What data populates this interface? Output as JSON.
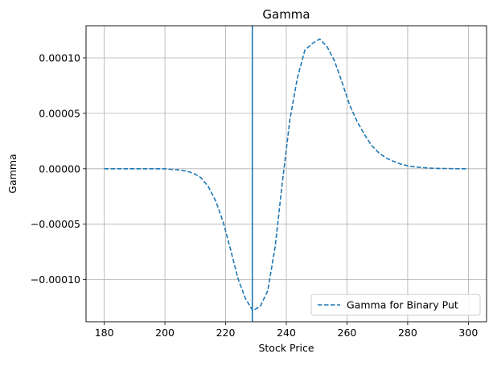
{
  "chart_data": {
    "type": "line",
    "title": "Gamma",
    "xlabel": "Stock Price",
    "ylabel": "Gamma",
    "xlim": [
      174,
      306
    ],
    "ylim": [
      -0.000138,
      0.000129
    ],
    "x_ticks": [
      180,
      200,
      220,
      240,
      260,
      280,
      300
    ],
    "x_tick_labels": [
      "180",
      "200",
      "220",
      "240",
      "260",
      "280",
      "300"
    ],
    "y_ticks": [
      -0.0001,
      -5e-05,
      0.0,
      5e-05,
      0.0001
    ],
    "y_tick_labels": [
      "−0.00010",
      "−0.00005",
      "0.00000",
      "0.00005",
      "0.00010"
    ],
    "grid": true,
    "legend_position": "bottom-right",
    "vertical_line": {
      "x": 228.8,
      "color": "#1f77b4"
    },
    "series": [
      {
        "name": "Gamma for Binary Put",
        "style": "dashed",
        "color": "#1f77b4",
        "x": [
          180,
          182.45,
          184.9,
          187.35,
          189.8,
          192.24,
          194.69,
          197.14,
          199.59,
          202.04,
          204.49,
          206.94,
          209.39,
          211.84,
          214.29,
          216.73,
          219.18,
          221.63,
          224.08,
          226.53,
          228.98,
          231.43,
          233.88,
          236.33,
          238.78,
          241.22,
          243.67,
          246.12,
          248.57,
          251.02,
          253.47,
          255.92,
          258.37,
          260.82,
          263.27,
          265.71,
          268.16,
          270.61,
          273.06,
          275.51,
          277.96,
          280.41,
          282.86,
          285.31,
          287.76,
          290.2,
          292.65,
          295.1,
          297.55,
          300
        ],
        "y": [
          0,
          0,
          0,
          0,
          0,
          0,
          0,
          0,
          0,
          -5e-07,
          -1e-06,
          -2e-06,
          -4e-06,
          -8e-06,
          -1.6e-05,
          -2.9e-05,
          -4.8e-05,
          -7.3e-05,
          -9.9e-05,
          -0.000117,
          -0.000128,
          -0.000124,
          -0.00011,
          -7e-05,
          -1e-05,
          4.5e-05,
          8.2e-05,
          0.000107,
          0.000113,
          0.000117,
          0.00011,
          9.7e-05,
          7.8e-05,
          5.8e-05,
          4.3e-05,
          3.1e-05,
          2.1e-05,
          1.4e-05,
          9.5e-06,
          6.5e-06,
          4e-06,
          2.5e-06,
          1.5e-06,
          1e-06,
          5e-07,
          3e-07,
          2e-07,
          1e-07,
          0,
          0
        ]
      }
    ]
  }
}
